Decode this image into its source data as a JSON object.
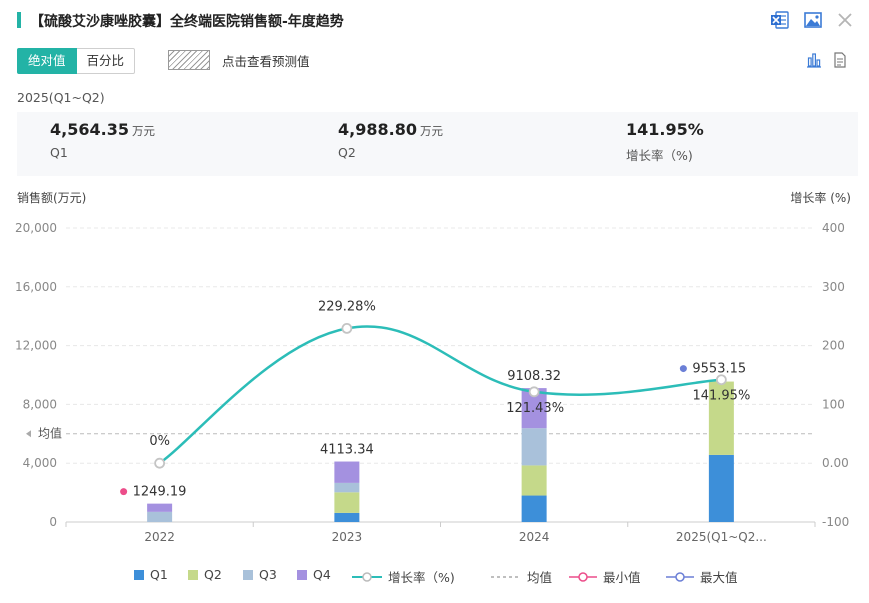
{
  "header": {
    "title": "【硫酸艾沙康唑胶囊】全终端医院销售额-年度趋势",
    "icons": [
      "excel-export-icon",
      "image-export-icon",
      "close-icon"
    ]
  },
  "toolbar": {
    "tab_absolute": "绝对值",
    "tab_percent": "百分比",
    "forecast_label": "点击查看预测值",
    "right_icons": [
      "bar-chart-icon",
      "table-view-icon"
    ]
  },
  "summary": {
    "period": "2025(Q1~Q2)",
    "q1_value": "4,564.35",
    "q1_unit": "万元",
    "q1_label": "Q1",
    "q2_value": "4,988.80",
    "q2_unit": "万元",
    "q2_label": "Q2",
    "growth_value": "141.95%",
    "growth_label": "增长率（%)"
  },
  "chart_data": {
    "type": "bar",
    "ylabel": "销售额(万元)",
    "y2label": "增长率 (%)",
    "ylim": [
      0,
      20000
    ],
    "y2lim": [
      -100,
      400
    ],
    "yticks": [
      "20,000",
      "16,000",
      "12,000",
      "8,000",
      "4,000",
      "0"
    ],
    "y2ticks": [
      "400",
      "300",
      "200",
      "100",
      "0.00",
      "-100"
    ],
    "categories": [
      "2022",
      "2023",
      "2024",
      "2025(Q1~Q2..."
    ],
    "stacked": true,
    "series": [
      {
        "name": "Q1",
        "color": "#3d8fd9",
        "values": [
          0,
          620,
          1800,
          4564.35
        ]
      },
      {
        "name": "Q2",
        "color": "#c5d98a",
        "values": [
          0,
          1400,
          2050,
          4988.8
        ]
      },
      {
        "name": "Q3",
        "color": "#a9c1da",
        "values": [
          690,
          640,
          2530,
          0
        ]
      },
      {
        "name": "Q4",
        "color": "#a491e0",
        "values": [
          559.19,
          1453.34,
          2728.32,
          0
        ]
      }
    ],
    "totals": [
      1249.19,
      4113.34,
      9108.32,
      9553.15
    ],
    "total_labels": [
      "1249.19",
      "4113.34",
      "9108.32",
      "9553.15"
    ],
    "growth": {
      "name": "增长率（%)",
      "color": "#2cbdb8",
      "values": [
        0,
        229.28,
        121.43,
        141.95
      ]
    },
    "growth_labels": [
      "0%",
      "229.28%",
      "121.43%",
      "141.95%"
    ],
    "average": {
      "name": "均值",
      "label": "均值",
      "value": 6005.9
    },
    "min_marker": {
      "name": "最小值",
      "color": "#ec4d8a",
      "index": 0
    },
    "max_marker": {
      "name": "最大值",
      "color": "#6b7fd6",
      "index": 3
    },
    "grid": true,
    "legend_position": "bottom"
  }
}
